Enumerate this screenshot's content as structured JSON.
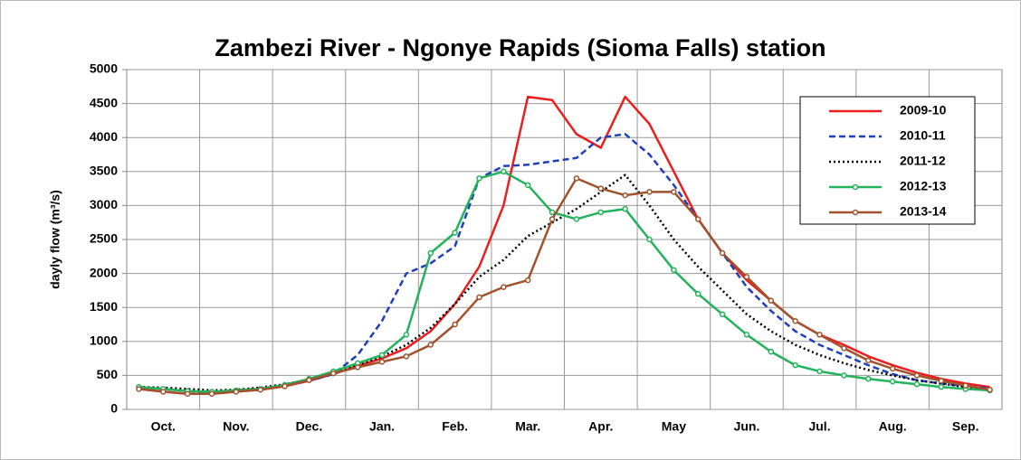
{
  "chart_data": {
    "type": "line",
    "title": "Zambezi River - Ngonye Rapids (Sioma Falls) station",
    "y_label": "dayly flow (m³/s)",
    "categories": [
      null,
      "Oct.",
      null,
      null,
      "Nov.",
      null,
      null,
      "Dec.",
      null,
      null,
      "Jan.",
      null,
      null,
      "Feb.",
      null,
      null,
      "Mar.",
      null,
      null,
      "Apr.",
      null,
      null,
      "May",
      null,
      null,
      "Jun.",
      null,
      null,
      "Jul.",
      null,
      null,
      "Aug.",
      null,
      null,
      "Sep.",
      null
    ],
    "ylim": [
      0,
      5000
    ],
    "yticks": [
      0,
      500,
      1000,
      1500,
      2000,
      2500,
      3000,
      3500,
      4000,
      4500,
      5000
    ],
    "grid": true,
    "legend": "upper right",
    "series": [
      {
        "name": "2009-10",
        "color": "#ee1c1c",
        "style": "solid",
        "marker": false,
        "values": [
          300,
          260,
          230,
          230,
          260,
          290,
          340,
          420,
          520,
          640,
          750,
          900,
          1150,
          1550,
          2100,
          3000,
          4600,
          4550,
          4050,
          3850,
          4600,
          4200,
          3500,
          2800,
          2300,
          1900,
          1600,
          1300,
          1100,
          950,
          780,
          650,
          540,
          450,
          380,
          330
        ]
      },
      {
        "name": "2010-11",
        "color": "#1f3fbf",
        "style": "dashed",
        "marker": false,
        "values": [
          330,
          300,
          270,
          250,
          280,
          310,
          350,
          420,
          520,
          800,
          1300,
          2000,
          2150,
          2400,
          3400,
          3580,
          3600,
          3650,
          3700,
          4000,
          4050,
          3750,
          3300,
          2800,
          2300,
          1800,
          1450,
          1150,
          950,
          800,
          650,
          520,
          430,
          380,
          340,
          310
        ]
      },
      {
        "name": "2011-12",
        "color": "#000000",
        "style": "dotted",
        "marker": false,
        "values": [
          330,
          320,
          300,
          280,
          290,
          320,
          370,
          440,
          530,
          650,
          780,
          950,
          1200,
          1550,
          1950,
          2200,
          2550,
          2750,
          2950,
          3200,
          3450,
          3000,
          2500,
          2100,
          1750,
          1400,
          1150,
          950,
          800,
          680,
          580,
          500,
          430,
          380,
          330,
          290
        ]
      },
      {
        "name": "2012-13",
        "color": "#22b35b",
        "style": "solid",
        "marker": true,
        "values": [
          330,
          300,
          270,
          260,
          280,
          300,
          360,
          450,
          560,
          680,
          800,
          1100,
          2300,
          2600,
          3400,
          3500,
          3300,
          2900,
          2800,
          2900,
          2950,
          2500,
          2050,
          1700,
          1400,
          1100,
          850,
          650,
          560,
          500,
          450,
          410,
          370,
          330,
          300,
          280
        ]
      },
      {
        "name": "2013-14",
        "color": "#a0522d",
        "style": "solid",
        "marker": true,
        "values": [
          300,
          260,
          230,
          230,
          260,
          290,
          340,
          430,
          530,
          620,
          700,
          780,
          950,
          1250,
          1650,
          1800,
          1900,
          2800,
          3400,
          3250,
          3150,
          3200,
          3200,
          2800,
          2300,
          1950,
          1600,
          1300,
          1100,
          900,
          720,
          600,
          500,
          420,
          350,
          290
        ]
      }
    ]
  }
}
